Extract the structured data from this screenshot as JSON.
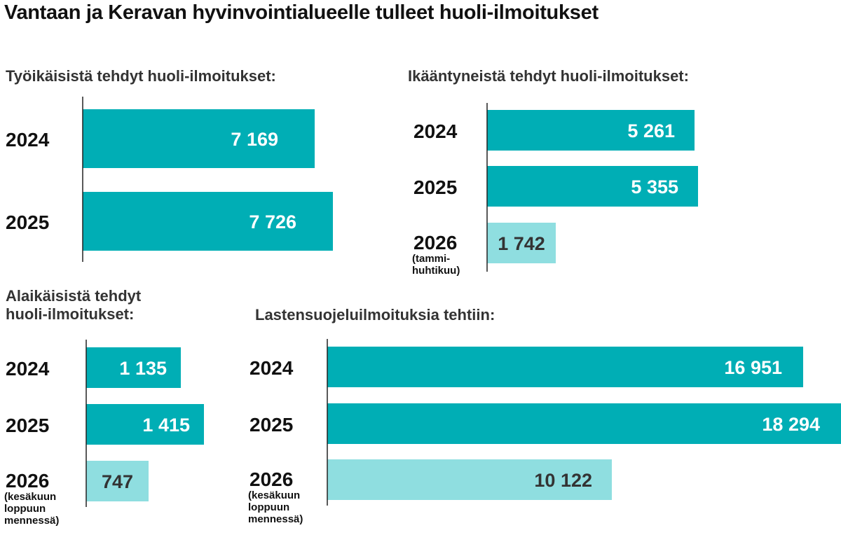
{
  "title": "Vantaan ja Keravan hyvinvointialueelle tulleet huoli-ilmoitukset",
  "colors": {
    "bar_full_year": "#00aeb5",
    "bar_partial_year": "#8fdee0",
    "value_text_light": "#ffffff",
    "value_text_dark": "#333333",
    "axis": "#222222"
  },
  "chart_data": [
    {
      "type": "bar",
      "orientation": "horizontal",
      "title": "Työikäisistä tehdyt huoli-ilmoitukset:",
      "categories": [
        "2024",
        "2025"
      ],
      "category_notes": [
        "",
        ""
      ],
      "values": [
        7169,
        7726
      ],
      "value_labels": [
        "7 169",
        "7 726"
      ],
      "partial": [
        false,
        false
      ],
      "xlim": [
        0,
        7726
      ]
    },
    {
      "type": "bar",
      "orientation": "horizontal",
      "title": "Ikääntyneistä tehdyt huoli-ilmoitukset:",
      "categories": [
        "2024",
        "2025",
        "2026"
      ],
      "category_notes": [
        "",
        "",
        "(tammi-\nhuhtikuu)"
      ],
      "values": [
        5261,
        5355,
        1742
      ],
      "value_labels": [
        "5 261",
        "5 355",
        "1 742"
      ],
      "partial": [
        false,
        false,
        true
      ],
      "xlim": [
        0,
        5355
      ]
    },
    {
      "type": "bar",
      "orientation": "horizontal",
      "title": "Alaikäisistä tehdyt\nhuoli-ilmoitukset:",
      "categories": [
        "2024",
        "2025",
        "2026"
      ],
      "category_notes": [
        "",
        "",
        "(kesäkuun\nloppuun\nmennessä)"
      ],
      "values": [
        1135,
        1415,
        747
      ],
      "value_labels": [
        "1 135",
        "1 415",
        "747"
      ],
      "partial": [
        false,
        false,
        true
      ],
      "xlim": [
        0,
        1415
      ]
    },
    {
      "type": "bar",
      "orientation": "horizontal",
      "title": "Lastensuojeluilmoituksia tehtiin:",
      "categories": [
        "2024",
        "2025",
        "2026"
      ],
      "category_notes": [
        "",
        "",
        "(kesäkuun\nloppuun\nmennessä)"
      ],
      "values": [
        16951,
        18294,
        10122
      ],
      "value_labels": [
        "16 951",
        "18 294",
        "10 122"
      ],
      "partial": [
        false,
        false,
        true
      ],
      "xlim": [
        0,
        18294
      ]
    }
  ]
}
